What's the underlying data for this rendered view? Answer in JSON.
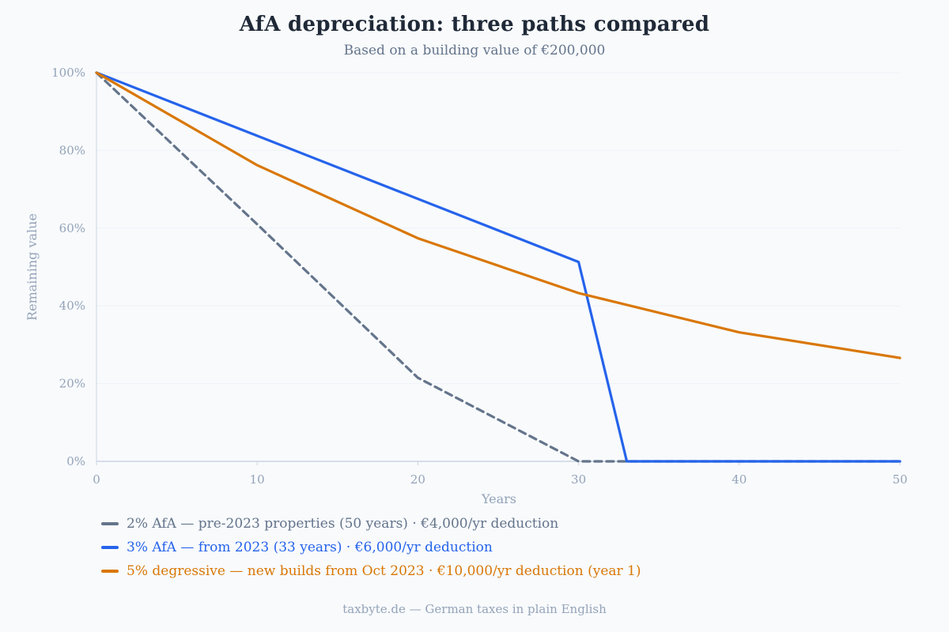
{
  "header": {
    "title": "AfA depreciation: three paths compared",
    "subtitle": "Based on a building value of €200,000"
  },
  "footer": {
    "text": "taxbyte.de — German taxes in plain English"
  },
  "chart_data": {
    "type": "line",
    "xlabel": "Years",
    "ylabel": "Remaining value",
    "xlim": [
      0,
      50
    ],
    "ylim": [
      0,
      100
    ],
    "x_ticks": [
      0,
      10,
      20,
      30,
      40,
      50
    ],
    "y_ticks": [
      0,
      20,
      40,
      60,
      80,
      100
    ],
    "y_tick_labels": [
      "0%",
      "20%",
      "40%",
      "60%",
      "80%",
      "100%"
    ],
    "grid": true,
    "legend_position": "bottom-left",
    "series": [
      {
        "name": "2% AfA — pre-2023 properties (50 years) · €4,000/yr deduction",
        "color": "#64748b",
        "dashed": true,
        "points": [
          [
            0,
            100
          ],
          [
            10,
            61
          ],
          [
            20,
            21.5
          ],
          [
            30,
            0
          ],
          [
            50,
            0
          ]
        ]
      },
      {
        "name": "3% AfA — from 2023 (33 years) · €6,000/yr deduction",
        "color": "#2563eb",
        "dashed": false,
        "points": [
          [
            0,
            100
          ],
          [
            30,
            51.3
          ],
          [
            33,
            0
          ],
          [
            50,
            0
          ]
        ]
      },
      {
        "name": "5% degressive — new builds from Oct 2023 · €10,000/yr deduction (year 1)",
        "color": "#d97706",
        "dashed": false,
        "points": [
          [
            0,
            100
          ],
          [
            10,
            76.2
          ],
          [
            20,
            57.4
          ],
          [
            30,
            43.3
          ],
          [
            40,
            33.2
          ],
          [
            50,
            26.6
          ]
        ]
      }
    ]
  }
}
